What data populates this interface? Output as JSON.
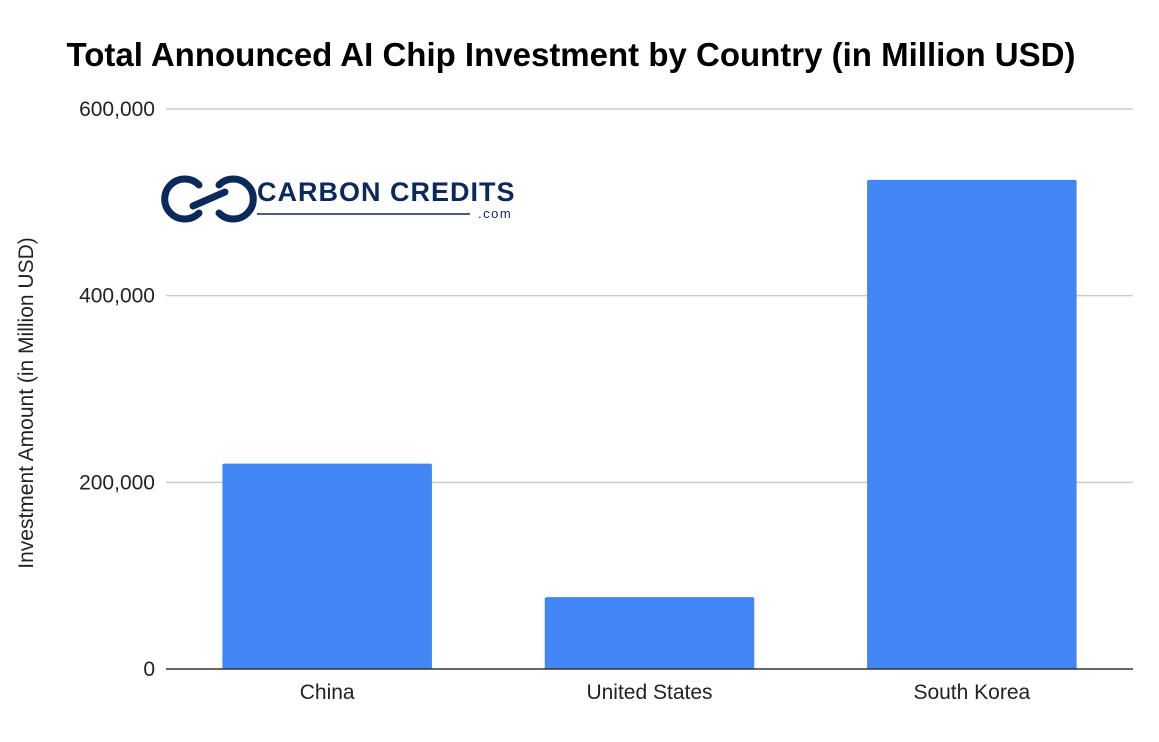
{
  "colors": {
    "bar": "#4285f4",
    "grid": "#cccccc",
    "axis": "#333333",
    "brand": "#0b2a5b"
  },
  "logo": {
    "name": "CARBON CREDITS",
    "suffix": ".com",
    "icon": "chain-link-icon"
  },
  "chart_data": {
    "type": "bar",
    "title": "Total Announced AI Chip Investment by Country (in Million USD)",
    "xlabel": "",
    "ylabel": "Investment Amount (in Million USD)",
    "categories": [
      "China",
      "United States",
      "South Korea"
    ],
    "values": [
      220000,
      77000,
      524000
    ],
    "ylim": [
      0,
      600000
    ],
    "yticks": [
      0,
      200000,
      400000,
      600000
    ],
    "ytick_labels": [
      "0",
      "200,000",
      "400,000",
      "600,000"
    ],
    "grid": true,
    "legend": "none"
  }
}
